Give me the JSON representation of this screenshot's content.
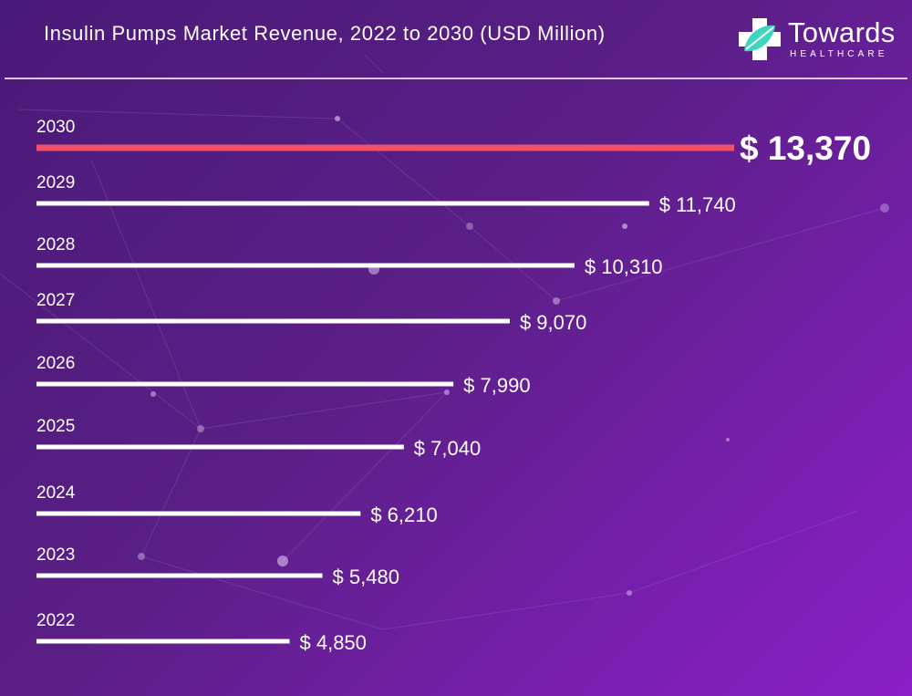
{
  "header": {
    "title": "Insulin Pumps Market Revenue, 2022 to 2030 (USD Million)",
    "logo": {
      "name": "Towards",
      "subtitle": "HEALTHCARE",
      "icon": "cross-leaf-icon"
    }
  },
  "colors": {
    "bar_default": "#ffffff",
    "bar_highlight": "#f0506a",
    "accent_teal": "#3fd6c0"
  },
  "chart_data": {
    "type": "bar",
    "orientation": "horizontal",
    "categories": [
      "2030",
      "2029",
      "2028",
      "2027",
      "2026",
      "2025",
      "2024",
      "2023",
      "2022"
    ],
    "values": [
      13370,
      11740,
      10310,
      9070,
      7990,
      7040,
      6210,
      5480,
      4850
    ],
    "value_labels": [
      "$ 13,370",
      "$ 11,740",
      "$ 10,310",
      "$ 9,070",
      "$ 7,990",
      "$ 7,040",
      "$ 6,210",
      "$ 5,480",
      "$ 4,850"
    ],
    "highlight_category": "2030",
    "title": "Insulin Pumps Market Revenue, 2022 to 2030 (USD Million)",
    "xlabel": "",
    "ylabel": "",
    "grid": false
  }
}
